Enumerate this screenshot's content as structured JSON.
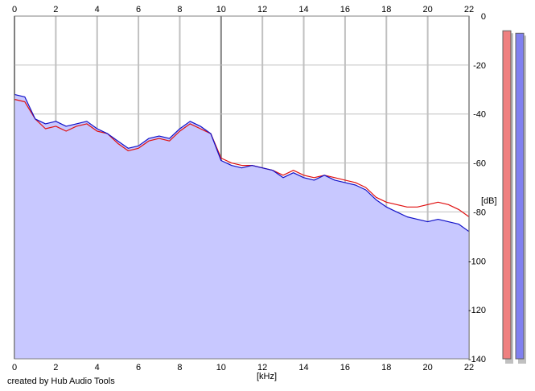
{
  "footer": {
    "credit": "created by Hub Audio Tools"
  },
  "colors": {
    "fill": "#c8c8ff",
    "left_channel": "#e01010",
    "right_channel": "#1010c8",
    "grid": "#c0c0c0",
    "grid_major": "#808080",
    "meter_left": "#ef8080",
    "meter_right": "#8080ef"
  },
  "chart_data": {
    "type": "line",
    "xlabel": "[kHz]",
    "ylabel": "[dB]",
    "xlim": [
      0,
      22
    ],
    "ylim": [
      -140,
      0
    ],
    "xticks": [
      "0",
      "2",
      "4",
      "6",
      "8",
      "10",
      "12",
      "14",
      "16",
      "18",
      "20",
      "22"
    ],
    "yticks": [
      "0",
      "-20",
      "-40",
      "-60",
      "-80",
      "-100",
      "-120",
      "-140"
    ],
    "grid": true,
    "x": [
      0,
      0.5,
      1,
      1.5,
      2,
      2.5,
      3,
      3.5,
      4,
      4.5,
      5,
      5.5,
      6,
      6.5,
      7,
      7.5,
      8,
      8.5,
      9,
      9.5,
      10,
      10.5,
      11,
      11.5,
      12,
      12.5,
      13,
      13.5,
      14,
      14.5,
      15,
      15.5,
      16,
      16.5,
      17,
      17.5,
      18,
      18.5,
      19,
      19.5,
      20,
      20.5,
      21,
      21.5,
      22
    ],
    "series": [
      {
        "channel": "left",
        "values": [
          -34,
          -35,
          -42,
          -46,
          -45,
          -47,
          -45,
          -44,
          -47,
          -48,
          -52,
          -55,
          -54,
          -51,
          -50,
          -51,
          -47,
          -44,
          -46,
          -48,
          -58,
          -60,
          -61,
          -61,
          -62,
          -63,
          -65,
          -63,
          -65,
          -66,
          -65,
          -66,
          -67,
          -68,
          -70,
          -74,
          -76,
          -77,
          -78,
          -78,
          -77,
          -76,
          -77,
          -79,
          -82
        ]
      },
      {
        "channel": "right",
        "values": [
          -32,
          -33,
          -42,
          -44,
          -43,
          -45,
          -44,
          -43,
          -46,
          -48,
          -51,
          -54,
          -53,
          -50,
          -49,
          -50,
          -46,
          -43,
          -45,
          -48,
          -59,
          -61,
          -62,
          -61,
          -62,
          -63,
          -66,
          -64,
          -66,
          -67,
          -65,
          -67,
          -68,
          -69,
          -71,
          -75,
          -78,
          -80,
          -82,
          -83,
          -84,
          -83,
          -84,
          -85,
          -88
        ]
      }
    ]
  },
  "level_meters": {
    "left_level_db": -6,
    "right_level_db": -7
  }
}
